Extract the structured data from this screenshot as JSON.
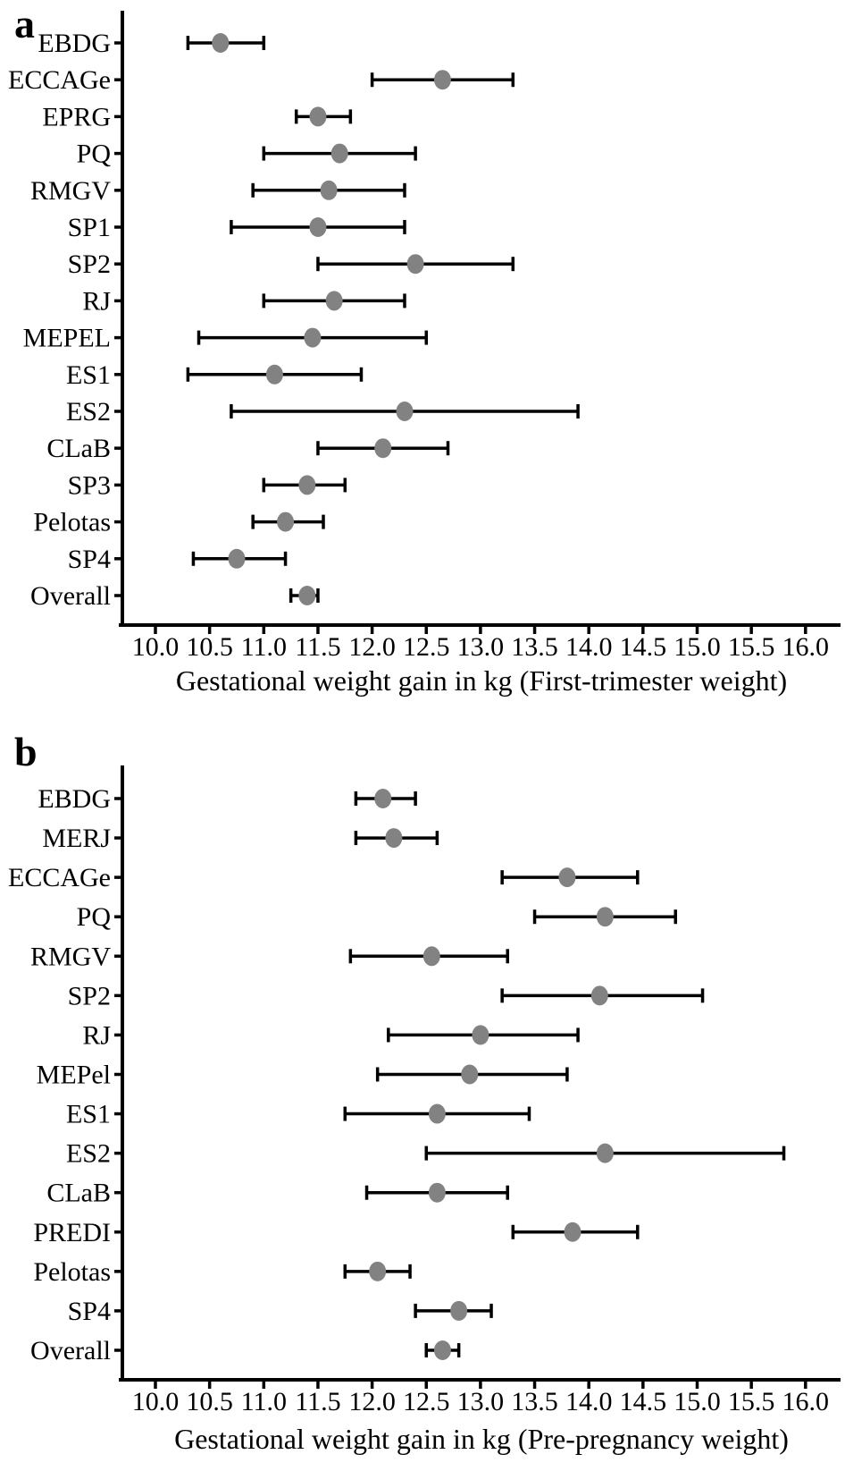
{
  "figure": {
    "background": "#ffffff",
    "panel_count": 2
  },
  "colors": {
    "point": "#828282",
    "line": "#000000",
    "text": "#000000"
  },
  "chart_data": [
    {
      "type": "scatter",
      "subtype": "forest-plot-with-error-bars",
      "panel_label": "a",
      "title": "",
      "xlabel": "Gestational weight gain in kg (First-trimester weight)",
      "ylabel": "",
      "grid": false,
      "legend": "none",
      "x_axis": {
        "min": 10.0,
        "max": 16.0,
        "tick_step": 0.5,
        "tick_labels": [
          "10.0",
          "10.5",
          "11.0",
          "11.5",
          "12.0",
          "12.5",
          "13.0",
          "13.5",
          "14.0",
          "14.5",
          "15.0",
          "15.5",
          "16.0"
        ]
      },
      "categories": [
        "EBDG",
        "ECCAGe",
        "EPRG",
        "PQ",
        "RMGV",
        "SP1",
        "SP2",
        "RJ",
        "MEPEL",
        "ES1",
        "ES2",
        "CLaB",
        "SP3",
        "Pelotas",
        "SP4",
        "Overall"
      ],
      "series": [
        {
          "name": "mean",
          "values": [
            10.6,
            12.65,
            11.5,
            11.7,
            11.6,
            11.5,
            12.4,
            11.65,
            11.45,
            11.1,
            12.3,
            12.1,
            11.4,
            11.2,
            10.75,
            11.4
          ]
        },
        {
          "name": "ci_low",
          "values": [
            10.3,
            12.0,
            11.3,
            11.0,
            10.9,
            10.7,
            11.5,
            11.0,
            10.4,
            10.3,
            10.7,
            11.5,
            11.0,
            10.9,
            10.35,
            11.25
          ]
        },
        {
          "name": "ci_high",
          "values": [
            11.0,
            13.3,
            11.8,
            12.4,
            12.3,
            12.3,
            13.3,
            12.3,
            12.5,
            11.9,
            13.9,
            12.7,
            11.75,
            11.55,
            11.2,
            11.5
          ]
        }
      ]
    },
    {
      "type": "scatter",
      "subtype": "forest-plot-with-error-bars",
      "panel_label": "b",
      "title": "",
      "xlabel": "Gestational weight gain in kg (Pre-pregnancy weight)",
      "ylabel": "",
      "grid": false,
      "legend": "none",
      "x_axis": {
        "min": 10.0,
        "max": 16.0,
        "tick_step": 0.5,
        "tick_labels": [
          "10.0",
          "10.5",
          "11.0",
          "11.5",
          "12.0",
          "12.5",
          "13.0",
          "13.5",
          "14.0",
          "14.5",
          "15.0",
          "15.5",
          "16.0"
        ]
      },
      "categories": [
        "EBDG",
        "MERJ",
        "ECCAGe",
        "PQ",
        "RMGV",
        "SP2",
        "RJ",
        "MEPel",
        "ES1",
        "ES2",
        "CLaB",
        "PREDI",
        "Pelotas",
        "SP4",
        "Overall"
      ],
      "series": [
        {
          "name": "mean",
          "values": [
            12.1,
            12.2,
            13.8,
            14.15,
            12.55,
            14.1,
            13.0,
            12.9,
            12.6,
            14.15,
            12.6,
            13.85,
            12.05,
            12.8,
            12.65
          ]
        },
        {
          "name": "ci_low",
          "values": [
            11.85,
            11.85,
            13.2,
            13.5,
            11.8,
            13.2,
            12.15,
            12.05,
            11.75,
            12.5,
            11.95,
            13.3,
            11.75,
            12.4,
            12.5
          ]
        },
        {
          "name": "ci_high",
          "values": [
            12.4,
            12.6,
            14.45,
            14.8,
            13.25,
            15.05,
            13.9,
            13.8,
            13.45,
            15.8,
            13.25,
            14.45,
            12.35,
            13.1,
            12.8
          ]
        }
      ]
    }
  ]
}
